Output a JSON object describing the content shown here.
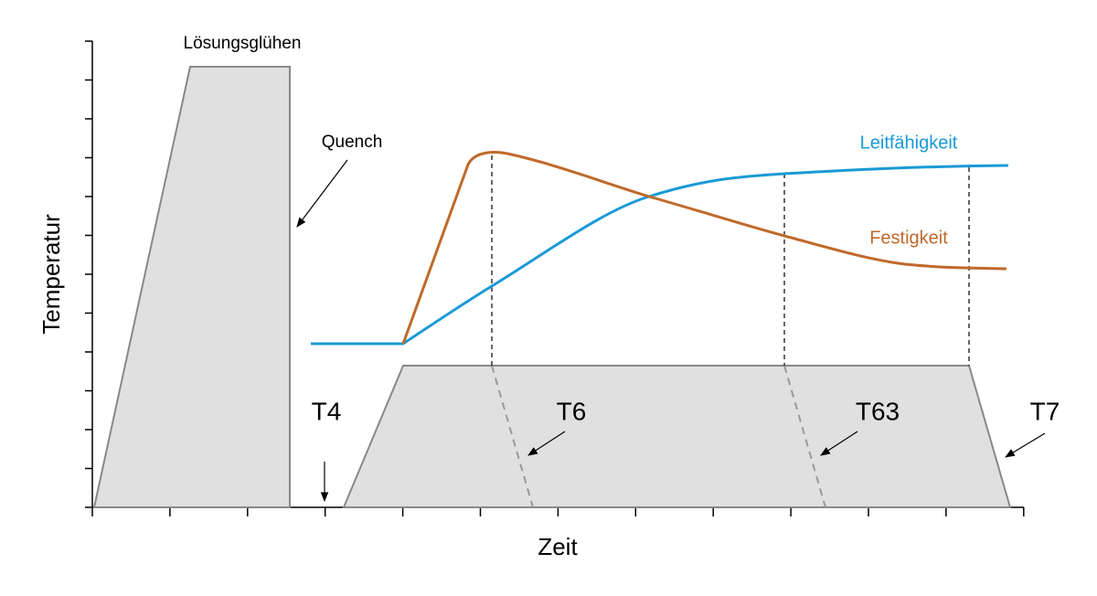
{
  "axes": {
    "y_label": "Temperatur",
    "x_label": "Zeit"
  },
  "labels": {
    "solution_annealing": "Lösungsglühen",
    "quench": "Quench",
    "conductivity": "Leitfähigkeit",
    "strength": "Festigkeit"
  },
  "states": [
    "T4",
    "T6",
    "T63",
    "T7"
  ]
}
